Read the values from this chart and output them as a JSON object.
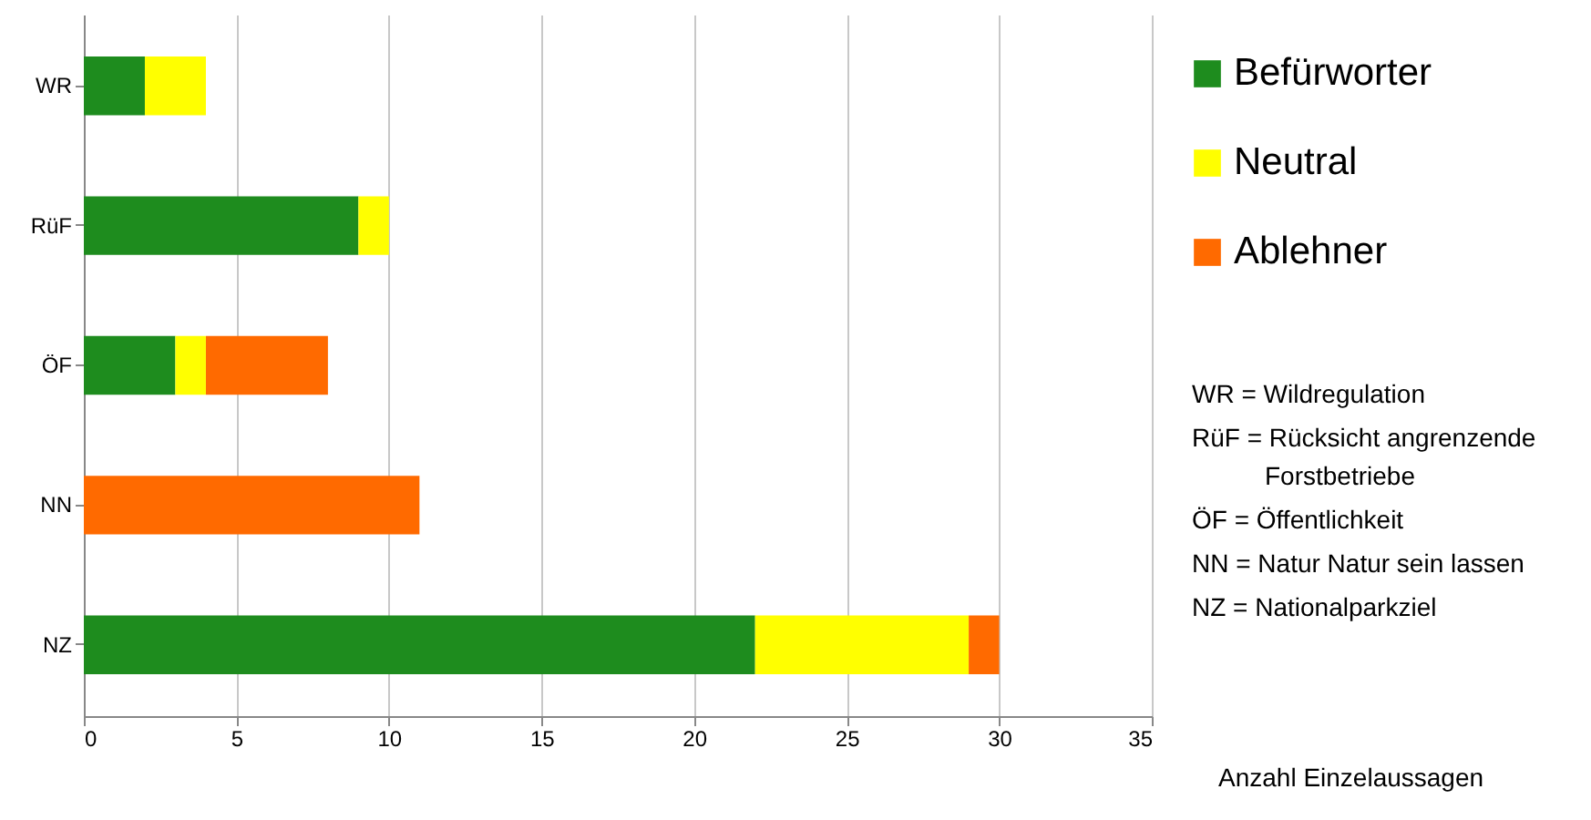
{
  "chart_data": {
    "type": "bar",
    "orientation": "horizontal",
    "stacked": true,
    "categories": [
      "WR",
      "RüF",
      "ÖF",
      "NN",
      "NZ"
    ],
    "series": [
      {
        "name": "Befürworter",
        "color": "#1e8c1e",
        "values": [
          2,
          9,
          3,
          0,
          22
        ]
      },
      {
        "name": "Neutral",
        "color": "#ffff00",
        "values": [
          2,
          1,
          1,
          0,
          7
        ]
      },
      {
        "name": "Ablehner",
        "color": "#ff6a00",
        "values": [
          0,
          0,
          4,
          11,
          1
        ]
      }
    ],
    "xlim": [
      0,
      35
    ],
    "xticks": [
      0,
      5,
      10,
      15,
      20,
      25,
      30,
      35
    ],
    "xlabel": "Anzahl Einzelaussagen",
    "grid": "x",
    "legend": "right",
    "annotations": [
      "WR = Wildregulation",
      "RüF = Rücksicht angrenzende Forstbetriebe",
      "ÖF = Öffentlichkeit",
      "NN = Natur Natur sein lassen",
      "NZ = Nationalparkziel"
    ]
  }
}
